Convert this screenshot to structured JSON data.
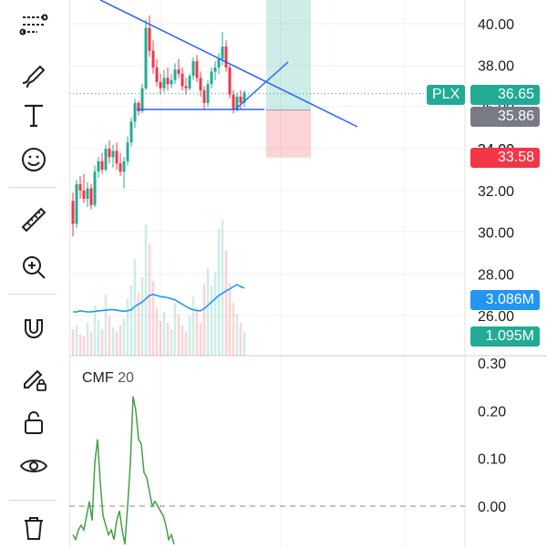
{
  "toolbar": {
    "tools": [
      {
        "icon": "trend-line-icon"
      },
      {
        "icon": "brush-icon"
      },
      {
        "icon": "text-tool-icon"
      },
      {
        "icon": "emoji-icon"
      },
      {
        "icon": "ruler-icon"
      },
      {
        "icon": "zoom-in-icon"
      },
      {
        "icon": "magnet-icon"
      },
      {
        "icon": "lock-drawings-icon"
      },
      {
        "icon": "unlock-icon"
      },
      {
        "icon": "eye-icon"
      },
      {
        "icon": "trash-icon"
      }
    ]
  },
  "colors": {
    "up": "#22ab94",
    "down": "#f23645",
    "trendline": "#2962ff",
    "cmf": "#43a047",
    "volume_ma": "#2196f3"
  },
  "labels": {
    "symbol": "PLX",
    "last_price": "36.65",
    "entry_price": "35.86",
    "stop_price": "33.58",
    "volume_ma_value": "3.086M",
    "volume_value": "1.095M",
    "cmf_name": "CMF",
    "cmf_length": "20",
    "covered_tick": "34.00"
  },
  "chart_data": [
    {
      "type": "candlestick",
      "ylabel_ticks": [
        "40.00",
        "38.00",
        "36.00",
        "34.00",
        "32.00",
        "30.00",
        "28.00",
        "26.00"
      ],
      "ylim": [
        25.7,
        41.2
      ],
      "last_price": 36.65,
      "candles": [
        [
          31.5,
          31.9,
          29.8,
          30.4
        ],
        [
          30.4,
          32.5,
          30.2,
          32.3
        ],
        [
          32.3,
          32.7,
          31.6,
          32.0
        ],
        [
          32.0,
          32.8,
          31.4,
          31.6
        ],
        [
          31.6,
          32.4,
          31.2,
          32.1
        ],
        [
          32.1,
          32.3,
          31.1,
          31.3
        ],
        [
          31.3,
          33.2,
          31.2,
          32.9
        ],
        [
          32.9,
          33.6,
          32.6,
          33.4
        ],
        [
          33.4,
          33.8,
          32.8,
          33.0
        ],
        [
          33.0,
          34.2,
          32.9,
          34.0
        ],
        [
          34.0,
          34.4,
          33.3,
          33.6
        ],
        [
          33.6,
          34.2,
          33.1,
          33.9
        ],
        [
          33.9,
          34.3,
          33.0,
          33.3
        ],
        [
          33.3,
          33.8,
          32.7,
          32.9
        ],
        [
          32.9,
          33.6,
          32.1,
          33.4
        ],
        [
          33.4,
          34.6,
          33.2,
          34.3
        ],
        [
          34.3,
          35.5,
          34.1,
          35.3
        ],
        [
          35.3,
          36.4,
          35.0,
          36.2
        ],
        [
          36.2,
          36.3,
          35.6,
          35.8
        ],
        [
          35.8,
          37.1,
          35.7,
          36.9
        ],
        [
          36.9,
          40.2,
          36.8,
          39.8
        ],
        [
          39.8,
          40.4,
          38.4,
          38.7
        ],
        [
          38.7,
          39.2,
          37.6,
          37.9
        ],
        [
          37.9,
          38.3,
          37.0,
          37.2
        ],
        [
          37.2,
          37.6,
          36.6,
          36.9
        ],
        [
          36.9,
          37.8,
          36.7,
          37.4
        ],
        [
          37.4,
          37.9,
          36.8,
          37.1
        ],
        [
          37.1,
          37.6,
          36.9,
          37.3
        ],
        [
          37.3,
          38.1,
          37.1,
          37.8
        ],
        [
          37.8,
          38.3,
          37.4,
          37.6
        ],
        [
          37.6,
          37.9,
          36.8,
          37.0
        ],
        [
          37.0,
          37.4,
          36.6,
          36.9
        ],
        [
          36.9,
          37.6,
          36.8,
          37.5
        ],
        [
          37.5,
          38.4,
          37.3,
          38.2
        ],
        [
          38.2,
          38.5,
          37.2,
          37.4
        ],
        [
          37.4,
          37.7,
          36.5,
          36.8
        ],
        [
          36.8,
          37.0,
          35.9,
          36.2
        ],
        [
          36.2,
          37.3,
          36.0,
          37.1
        ],
        [
          37.1,
          37.9,
          36.9,
          37.7
        ],
        [
          37.7,
          38.2,
          37.3,
          37.9
        ],
        [
          37.9,
          38.6,
          37.6,
          38.3
        ],
        [
          38.3,
          39.6,
          38.0,
          38.9
        ],
        [
          38.9,
          39.2,
          37.7,
          37.9
        ],
        [
          37.9,
          38.1,
          36.4,
          36.6
        ],
        [
          36.6,
          36.8,
          35.7,
          35.9
        ],
        [
          35.9,
          36.7,
          35.8,
          36.5
        ],
        [
          36.5,
          36.8,
          35.9,
          36.2
        ],
        [
          36.2,
          36.8,
          36.0,
          36.7
        ]
      ]
    },
    {
      "type": "bar",
      "name": "Volume",
      "values_M": [
        1.2,
        1.4,
        1.0,
        0.9,
        1.5,
        1.1,
        2.3,
        1.6,
        1.2,
        2.8,
        1.8,
        1.3,
        1.1,
        1.4,
        1.7,
        2.6,
        3.2,
        4.4,
        2.9,
        3.6,
        6.0,
        5.1,
        3.4,
        2.2,
        1.6,
        2.0,
        1.5,
        1.2,
        2.4,
        1.9,
        1.4,
        1.1,
        1.8,
        2.7,
        2.2,
        1.5,
        3.3,
        4.0,
        3.2,
        3.8,
        5.8,
        6.2,
        4.8,
        3.3,
        2.4,
        1.9,
        1.5,
        1.095
      ],
      "ma_M": [
        2.0,
        2.0,
        2.05,
        2.02,
        2.0,
        2.0,
        2.02,
        2.05,
        2.06,
        2.08,
        2.1,
        2.1,
        2.08,
        2.05,
        2.03,
        2.05,
        2.1,
        2.25,
        2.35,
        2.45,
        2.6,
        2.75,
        2.8,
        2.75,
        2.7,
        2.68,
        2.65,
        2.6,
        2.55,
        2.45,
        2.35,
        2.25,
        2.15,
        2.1,
        2.06,
        2.05,
        2.15,
        2.3,
        2.45,
        2.6,
        2.75,
        2.85,
        2.95,
        3.05,
        3.15,
        3.25,
        3.15,
        3.086
      ]
    },
    {
      "type": "line",
      "name": "CMF 20",
      "ylabel_ticks": [
        "0.30",
        "0.20",
        "0.10",
        "0.00"
      ],
      "ylim": [
        -0.09,
        0.3
      ],
      "values": [
        -0.06,
        -0.07,
        -0.05,
        -0.04,
        -0.05,
        -0.02,
        0.01,
        -0.03,
        0.09,
        0.14,
        0.05,
        -0.02,
        -0.04,
        -0.06,
        -0.05,
        -0.07,
        -0.03,
        -0.01,
        -0.05,
        -0.08,
        0.0,
        0.09,
        0.23,
        0.2,
        0.14,
        0.13,
        0.07,
        0.06,
        0.03,
        0.0,
        0.01,
        0.0,
        -0.01,
        -0.02,
        -0.04,
        -0.07,
        -0.06,
        -0.08
      ]
    }
  ],
  "drawings": {
    "position": {
      "entry": 35.86,
      "target": 41.2,
      "stop": 33.58
    }
  }
}
